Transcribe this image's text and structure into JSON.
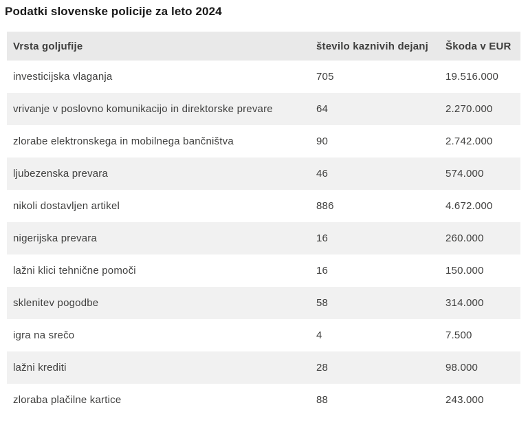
{
  "page": {
    "title": "Podatki slovenske policije za leto 2024"
  },
  "table": {
    "columns": [
      "Vrsta goljufije",
      "število kaznivih dejanj",
      "Škoda v EUR"
    ],
    "rows": [
      {
        "vrsta": "investicijska vlaganja",
        "stevilo": "705",
        "skoda": "19.516.000"
      },
      {
        "vrsta": "vrivanje v poslovno komunikacijo in direktorske prevare",
        "stevilo": "64",
        "skoda": "2.270.000"
      },
      {
        "vrsta": "zlorabe elektronskega in mobilnega bančništva",
        "stevilo": "90",
        "skoda": "2.742.000"
      },
      {
        "vrsta": "ljubezenska prevara",
        "stevilo": "46",
        "skoda": "574.000"
      },
      {
        "vrsta": "nikoli dostavljen artikel",
        "stevilo": "886",
        "skoda": "4.672.000"
      },
      {
        "vrsta": "nigerijska prevara",
        "stevilo": "16",
        "skoda": "260.000"
      },
      {
        "vrsta": "lažni klici tehnične pomoči",
        "stevilo": "16",
        "skoda": "150.000"
      },
      {
        "vrsta": "sklenitev pogodbe",
        "stevilo": "58",
        "skoda": "314.000"
      },
      {
        "vrsta": "igra na srečo",
        "stevilo": "4",
        "skoda": "7.500"
      },
      {
        "vrsta": "lažni krediti",
        "stevilo": "28",
        "skoda": "98.000"
      },
      {
        "vrsta": "zloraba plačilne kartice",
        "stevilo": "88",
        "skoda": "243.000"
      }
    ]
  },
  "colors": {
    "title_color": "#1a1a1a",
    "text_color": "#3f3f3e",
    "header_bg": "#e9e9e9",
    "stripe_bg": "#f1f1f1",
    "page_bg": "#ffffff"
  }
}
